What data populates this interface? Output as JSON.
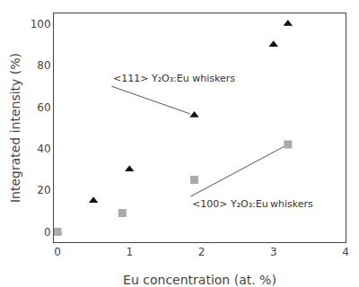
{
  "chart_data": {
    "type": "scatter",
    "xlabel": "Eu concentration (at. %)",
    "ylabel": "Integrated intensity (%)",
    "series": [
      {
        "x": [
          0.0,
          0.5,
          1.0,
          1.9,
          3.0,
          3.2
        ],
        "values": [
          0,
          15,
          30,
          56,
          90,
          100
        ],
        "color": "#111111",
        "marker": "triangle"
      },
      {
        "x": [
          0.0,
          0.9,
          1.9,
          3.2
        ],
        "values": [
          0,
          9,
          25,
          42
        ],
        "color": "#aaaaaa",
        "marker": "square"
      }
    ],
    "annotations": [
      {
        "text": "<111> Y₂O₃:Eu whiskers",
        "x": 1.9,
        "y": 56,
        "text_x": 0.75,
        "text_y": 70
      },
      {
        "text": "<100> Y₂O₃:Eu whiskers",
        "x": 3.2,
        "y": 42,
        "text_x": 1.85,
        "text_y": 17
      }
    ],
    "xlim": [
      -0.05,
      4
    ],
    "ylim": [
      -5,
      105
    ],
    "xticks": [
      0,
      1,
      2,
      3,
      4
    ],
    "yticks": [
      0,
      20,
      40,
      60,
      80,
      100
    ],
    "grid": false
  }
}
